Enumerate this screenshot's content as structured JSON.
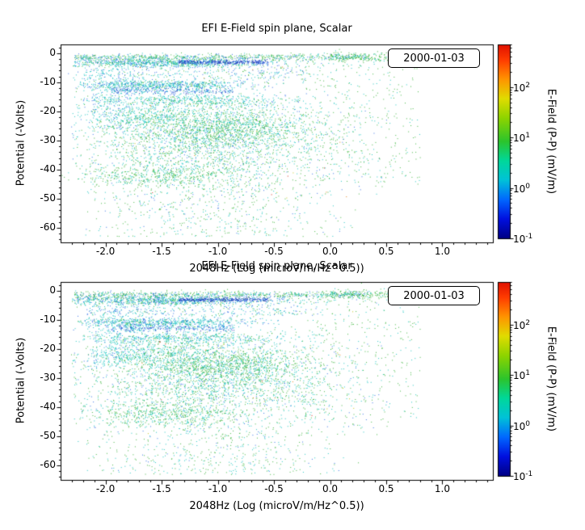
{
  "point_palette": {
    "green": "#46b946",
    "cyan": "#23c8c4",
    "blue": "#3a76e8",
    "darkblue": "#1c34b4",
    "yellow": "#c8c820",
    "orange": "#e88820",
    "red": "#d83020"
  },
  "colorbar_gradient": [
    [
      0.0,
      "#000085"
    ],
    [
      0.1,
      "#0010e0"
    ],
    [
      0.2,
      "#0068ff"
    ],
    [
      0.3,
      "#00c2d8"
    ],
    [
      0.4,
      "#00d89a"
    ],
    [
      0.5,
      "#2cc42c"
    ],
    [
      0.62,
      "#8ed400"
    ],
    [
      0.72,
      "#e0dc00"
    ],
    [
      0.82,
      "#ff9400"
    ],
    [
      0.92,
      "#ff3c00"
    ],
    [
      1.0,
      "#e01000"
    ]
  ],
  "chart_data": [
    {
      "type": "scatter",
      "title": "EFI  E-Field spin plane, Scalar",
      "date_label": "2000-01-03",
      "xlabel": "2048Hz (Log (microV/m/Hz^0.5))",
      "ylabel": "Potential (-Volts)",
      "xlim": [
        -2.4,
        1.45
      ],
      "ylim": [
        3,
        -65
      ],
      "grid": false,
      "xtick_values": [
        -2.0,
        -1.5,
        -1.0,
        -0.5,
        0.0,
        0.5,
        1.0
      ],
      "xtick_labels": [
        "-2.0",
        "-1.5",
        "-1.0",
        "-0.5",
        "0.0",
        "0.5",
        "1.0"
      ],
      "ytick_values": [
        0,
        -10,
        -20,
        -30,
        -40,
        -50,
        -60
      ],
      "ytick_labels": [
        "0",
        "-10",
        "-20",
        "-30",
        "-40",
        "-50",
        "-60"
      ],
      "colorbar": {
        "label": "E-Field (P-P) (mV/m)",
        "scale": "log",
        "range": [
          0.1,
          700
        ],
        "tick_values": [
          100,
          10,
          1,
          0.1
        ],
        "tick_labels": [
          {
            "base": "10",
            "exp": "2"
          },
          {
            "base": "10",
            "exp": "1"
          },
          {
            "base": "10",
            "exp": "0"
          },
          {
            "base": "10",
            "exp": "-1"
          }
        ]
      },
      "seed": 1371,
      "clusters": [
        {
          "n": 420,
          "x": {
            "d": "u",
            "a": -2.3,
            "b": 0.55
          },
          "y": {
            "d": "u",
            "a": -50,
            "b": -1
          },
          "c": {
            "green": 4,
            "cyan": 4,
            "blue": 2
          }
        },
        {
          "n": 800,
          "x": {
            "d": "u",
            "a": -2.28,
            "b": 0.35
          },
          "y": {
            "d": "g",
            "m": -1.3,
            "s": 0.6
          },
          "c": {
            "green": 5,
            "cyan": 3,
            "blue": 2
          }
        },
        {
          "n": 260,
          "x": {
            "d": "u",
            "a": 0.0,
            "b": 0.95
          },
          "y": {
            "d": "g",
            "m": -1.1,
            "s": 0.9
          },
          "c": {
            "green": 8,
            "cyan": 2
          }
        },
        {
          "n": 900,
          "x": {
            "d": "g",
            "m": -1.5,
            "s": 0.55,
            "a": -2.3,
            "b": 0.3
          },
          "y": {
            "d": "g",
            "m": -3.3,
            "s": 0.8
          },
          "c": {
            "cyan": 5,
            "blue": 2.5,
            "green": 2.5
          }
        },
        {
          "n": 330,
          "x": {
            "d": "u",
            "a": -1.35,
            "b": -0.55
          },
          "y": {
            "d": "g",
            "m": -3.0,
            "s": 0.35
          },
          "c": {
            "darkblue": 6,
            "blue": 4
          }
        },
        {
          "n": 260,
          "x": {
            "d": "u",
            "a": -2.2,
            "b": -0.2
          },
          "y": {
            "d": "g",
            "m": -7,
            "s": 1.3
          },
          "c": {
            "cyan": 5,
            "blue": 3,
            "green": 2
          }
        },
        {
          "n": 320,
          "x": {
            "d": "g",
            "m": -1.95,
            "s": 0.13
          },
          "y": {
            "d": "u",
            "a": -26,
            "b": -5
          },
          "c": {
            "cyan": 7,
            "blue": 3
          }
        },
        {
          "n": 650,
          "x": {
            "d": "g",
            "m": -1.5,
            "s": 0.4,
            "a": -2.25,
            "b": -0.4
          },
          "y": {
            "d": "g",
            "m": -10.8,
            "s": 0.8
          },
          "c": {
            "cyan": 6,
            "blue": 2.5,
            "green": 1.5
          }
        },
        {
          "n": 300,
          "x": {
            "d": "u",
            "a": -1.95,
            "b": -0.85
          },
          "y": {
            "d": "g",
            "m": -12.8,
            "s": 0.6
          },
          "c": {
            "blue": 5,
            "cyan": 3,
            "darkblue": 2
          }
        },
        {
          "n": 520,
          "x": {
            "d": "g",
            "m": -1.3,
            "s": 0.5,
            "a": -2.2,
            "b": 0.0
          },
          "y": {
            "d": "g",
            "m": -16,
            "s": 1.0
          },
          "c": {
            "cyan": 7,
            "green": 2,
            "blue": 1
          }
        },
        {
          "n": 2400,
          "x": {
            "d": "g",
            "m": -1.05,
            "s": 0.55,
            "a": -2.3,
            "b": 0.5
          },
          "y": {
            "d": "g",
            "m": -29,
            "s": 8,
            "a": -47,
            "b": -17
          },
          "c": {
            "cyan": 4.5,
            "green": 4.5,
            "blue": 1
          }
        },
        {
          "n": 550,
          "x": {
            "d": "g",
            "m": -0.95,
            "s": 0.35
          },
          "y": {
            "d": "g",
            "m": -25.5,
            "s": 2.5
          },
          "c": {
            "green": 7,
            "cyan": 3
          }
        },
        {
          "n": 300,
          "x": {
            "d": "g",
            "m": -1.6,
            "s": 0.25
          },
          "y": {
            "d": "g",
            "m": -21.5,
            "s": 2.0
          },
          "c": {
            "cyan": 8,
            "green": 2
          }
        },
        {
          "n": 480,
          "x": {
            "d": "g",
            "m": -1.5,
            "s": 0.35
          },
          "y": {
            "d": "g",
            "m": -42,
            "s": 2.0
          },
          "c": {
            "green": 6.5,
            "cyan": 3.5
          }
        },
        {
          "n": 520,
          "x": {
            "d": "g",
            "m": -1.1,
            "s": 0.6,
            "a": -2.25,
            "b": 0.3
          },
          "y": {
            "d": "u",
            "a": -63,
            "b": -45
          },
          "c": {
            "green": 5,
            "cyan": 4,
            "blue": 1
          }
        },
        {
          "n": 320,
          "x": {
            "d": "u",
            "a": -0.25,
            "b": 0.8
          },
          "y": {
            "d": "u",
            "a": -45,
            "b": -2
          },
          "c": {
            "green": 7,
            "cyan": 3
          }
        },
        {
          "n": 25,
          "x": {
            "d": "u",
            "a": -1.8,
            "b": 0.3
          },
          "y": {
            "d": "u",
            "a": -50,
            "b": -2
          },
          "c": {
            "yellow": 5,
            "orange": 3,
            "red": 2
          }
        }
      ]
    },
    {
      "type": "scatter",
      "title": "EFI  E-Field spin plane, Scalar",
      "date_label": "2000-01-03",
      "xlabel": "2048Hz (Log (microV/m/Hz^0.5))",
      "ylabel": "Potential (-Volts)",
      "xlim": [
        -2.4,
        1.45
      ],
      "ylim": [
        3,
        -65
      ],
      "grid": false,
      "xtick_values": [
        -2.0,
        -1.5,
        -1.0,
        -0.5,
        0.0,
        0.5,
        1.0
      ],
      "xtick_labels": [
        "-2.0",
        "-1.5",
        "-1.0",
        "-0.5",
        "0.0",
        "0.5",
        "1.0"
      ],
      "ytick_values": [
        0,
        -10,
        -20,
        -30,
        -40,
        -50,
        -60
      ],
      "ytick_labels": [
        "0",
        "-10",
        "-20",
        "-30",
        "-40",
        "-50",
        "-60"
      ],
      "colorbar": {
        "label": "E-Field (P-P) (mV/m)",
        "scale": "log",
        "range": [
          0.1,
          700
        ],
        "tick_values": [
          100,
          10,
          1,
          0.1
        ],
        "tick_labels": [
          {
            "base": "10",
            "exp": "2"
          },
          {
            "base": "10",
            "exp": "1"
          },
          {
            "base": "10",
            "exp": "0"
          },
          {
            "base": "10",
            "exp": "-1"
          }
        ]
      },
      "seed": 2417,
      "clusters": [
        {
          "n": 420,
          "x": {
            "d": "u",
            "a": -2.3,
            "b": 0.55
          },
          "y": {
            "d": "u",
            "a": -50,
            "b": -1
          },
          "c": {
            "green": 4,
            "cyan": 4,
            "blue": 2
          }
        },
        {
          "n": 800,
          "x": {
            "d": "u",
            "a": -2.28,
            "b": 0.35
          },
          "y": {
            "d": "g",
            "m": -1.3,
            "s": 0.6
          },
          "c": {
            "green": 5,
            "cyan": 3,
            "blue": 2
          }
        },
        {
          "n": 260,
          "x": {
            "d": "u",
            "a": 0.0,
            "b": 0.95
          },
          "y": {
            "d": "g",
            "m": -1.1,
            "s": 0.9
          },
          "c": {
            "green": 8,
            "cyan": 2
          }
        },
        {
          "n": 900,
          "x": {
            "d": "g",
            "m": -1.5,
            "s": 0.55,
            "a": -2.3,
            "b": 0.3
          },
          "y": {
            "d": "g",
            "m": -3.3,
            "s": 0.8
          },
          "c": {
            "cyan": 5,
            "blue": 2.5,
            "green": 2.5
          }
        },
        {
          "n": 330,
          "x": {
            "d": "u",
            "a": -1.35,
            "b": -0.55
          },
          "y": {
            "d": "g",
            "m": -3.0,
            "s": 0.35
          },
          "c": {
            "darkblue": 6,
            "blue": 4
          }
        },
        {
          "n": 260,
          "x": {
            "d": "u",
            "a": -2.2,
            "b": -0.2
          },
          "y": {
            "d": "g",
            "m": -7,
            "s": 1.3
          },
          "c": {
            "cyan": 5,
            "blue": 3,
            "green": 2
          }
        },
        {
          "n": 320,
          "x": {
            "d": "g",
            "m": -1.95,
            "s": 0.13
          },
          "y": {
            "d": "u",
            "a": -26,
            "b": -5
          },
          "c": {
            "cyan": 7,
            "blue": 3
          }
        },
        {
          "n": 650,
          "x": {
            "d": "g",
            "m": -1.5,
            "s": 0.4,
            "a": -2.25,
            "b": -0.4
          },
          "y": {
            "d": "g",
            "m": -10.8,
            "s": 0.8
          },
          "c": {
            "cyan": 6,
            "blue": 2.5,
            "green": 1.5
          }
        },
        {
          "n": 300,
          "x": {
            "d": "u",
            "a": -1.95,
            "b": -0.85
          },
          "y": {
            "d": "g",
            "m": -12.8,
            "s": 0.6
          },
          "c": {
            "blue": 5,
            "cyan": 3,
            "darkblue": 2
          }
        },
        {
          "n": 520,
          "x": {
            "d": "g",
            "m": -1.3,
            "s": 0.5,
            "a": -2.2,
            "b": 0.0
          },
          "y": {
            "d": "g",
            "m": -16,
            "s": 1.0
          },
          "c": {
            "cyan": 7,
            "green": 2,
            "blue": 1
          }
        },
        {
          "n": 2400,
          "x": {
            "d": "g",
            "m": -1.05,
            "s": 0.55,
            "a": -2.3,
            "b": 0.5
          },
          "y": {
            "d": "g",
            "m": -29,
            "s": 8,
            "a": -47,
            "b": -17
          },
          "c": {
            "cyan": 4.5,
            "green": 4.5,
            "blue": 1
          }
        },
        {
          "n": 550,
          "x": {
            "d": "g",
            "m": -0.95,
            "s": 0.35
          },
          "y": {
            "d": "g",
            "m": -25.5,
            "s": 2.5
          },
          "c": {
            "green": 7,
            "cyan": 3
          }
        },
        {
          "n": 300,
          "x": {
            "d": "g",
            "m": -1.6,
            "s": 0.25
          },
          "y": {
            "d": "g",
            "m": -21.5,
            "s": 2.0
          },
          "c": {
            "cyan": 8,
            "green": 2
          }
        },
        {
          "n": 480,
          "x": {
            "d": "g",
            "m": -1.5,
            "s": 0.35
          },
          "y": {
            "d": "g",
            "m": -42,
            "s": 2.0
          },
          "c": {
            "green": 6.5,
            "cyan": 3.5
          }
        },
        {
          "n": 520,
          "x": {
            "d": "g",
            "m": -1.1,
            "s": 0.6,
            "a": -2.25,
            "b": 0.3
          },
          "y": {
            "d": "u",
            "a": -63,
            "b": -45
          },
          "c": {
            "green": 5,
            "cyan": 4,
            "blue": 1
          }
        },
        {
          "n": 320,
          "x": {
            "d": "u",
            "a": -0.25,
            "b": 0.8
          },
          "y": {
            "d": "u",
            "a": -45,
            "b": -2
          },
          "c": {
            "green": 7,
            "cyan": 3
          }
        },
        {
          "n": 25,
          "x": {
            "d": "u",
            "a": -1.8,
            "b": 0.3
          },
          "y": {
            "d": "u",
            "a": -50,
            "b": -2
          },
          "c": {
            "yellow": 5,
            "orange": 3,
            "red": 2
          }
        }
      ]
    }
  ]
}
